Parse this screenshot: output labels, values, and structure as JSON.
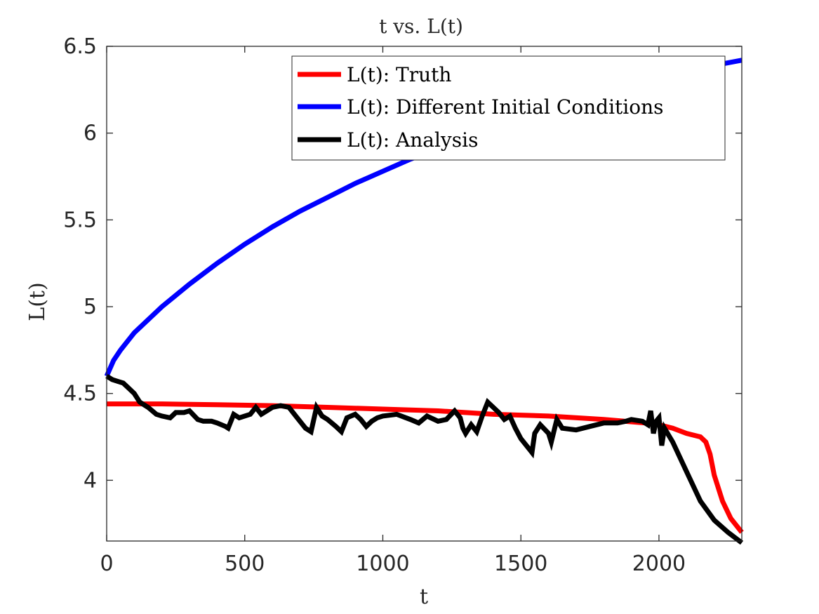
{
  "chart_data": {
    "type": "line",
    "title": "t vs. L(t)",
    "xlabel": "t",
    "ylabel": "L(t)",
    "xlim": [
      0,
      2300
    ],
    "ylim": [
      3.65,
      6.5
    ],
    "xticks": [
      0,
      500,
      1000,
      1500,
      2000
    ],
    "xtick_labels": [
      "0",
      "500",
      "1000",
      "1500",
      "2000"
    ],
    "yticks": [
      4,
      4.5,
      5,
      5.5,
      6,
      6.5
    ],
    "ytick_labels": [
      "4",
      "4.5",
      "5",
      "5.5",
      "6",
      "6.5"
    ],
    "grid": false,
    "legend_position": "top-right",
    "series": [
      {
        "name": "L(t): Truth",
        "color": "#ff0000",
        "x": [
          0,
          200,
          400,
          600,
          800,
          1000,
          1200,
          1400,
          1600,
          1800,
          1950,
          2000,
          2050,
          2100,
          2150,
          2170,
          2185,
          2200,
          2230,
          2260,
          2300
        ],
        "y": [
          4.44,
          4.44,
          4.435,
          4.43,
          4.42,
          4.41,
          4.4,
          4.38,
          4.37,
          4.35,
          4.33,
          4.32,
          4.3,
          4.27,
          4.25,
          4.22,
          4.15,
          4.03,
          3.88,
          3.78,
          3.7
        ]
      },
      {
        "name": "L(t): Different Initial Conditions",
        "color": "#0000ff",
        "x": [
          0,
          25,
          50,
          100,
          200,
          300,
          400,
          500,
          600,
          700,
          800,
          900,
          1000,
          1100,
          1200,
          1300,
          1400,
          1500,
          1600,
          1700,
          1800,
          1900,
          2000,
          2100,
          2200,
          2300
        ],
        "y": [
          4.6,
          4.69,
          4.75,
          4.85,
          5.0,
          5.13,
          5.25,
          5.36,
          5.46,
          5.55,
          5.63,
          5.71,
          5.78,
          5.85,
          5.91,
          5.97,
          6.03,
          6.08,
          6.13,
          6.18,
          6.23,
          6.27,
          6.31,
          6.35,
          6.39,
          6.42
        ]
      },
      {
        "name": "L(t): Analysis",
        "color": "#000000",
        "x": [
          0,
          20,
          40,
          60,
          80,
          100,
          120,
          150,
          180,
          200,
          230,
          250,
          280,
          300,
          330,
          350,
          380,
          400,
          430,
          440,
          460,
          480,
          500,
          520,
          540,
          560,
          580,
          600,
          630,
          660,
          690,
          700,
          720,
          740,
          760,
          780,
          800,
          830,
          850,
          870,
          900,
          920,
          940,
          960,
          980,
          1000,
          1050,
          1100,
          1130,
          1160,
          1200,
          1230,
          1260,
          1280,
          1290,
          1300,
          1320,
          1340,
          1360,
          1380,
          1400,
          1420,
          1440,
          1460,
          1480,
          1500,
          1520,
          1540,
          1550,
          1570,
          1600,
          1610,
          1630,
          1650,
          1700,
          1750,
          1800,
          1850,
          1880,
          1900,
          1940,
          1960,
          1970,
          1980,
          1990,
          2000,
          2010,
          2020,
          2050,
          2100,
          2150,
          2200,
          2250,
          2300
        ],
        "y": [
          4.6,
          4.58,
          4.57,
          4.56,
          4.53,
          4.5,
          4.45,
          4.42,
          4.38,
          4.37,
          4.36,
          4.39,
          4.39,
          4.4,
          4.35,
          4.34,
          4.34,
          4.33,
          4.31,
          4.3,
          4.38,
          4.36,
          4.37,
          4.38,
          4.42,
          4.38,
          4.4,
          4.42,
          4.43,
          4.42,
          4.36,
          4.34,
          4.3,
          4.28,
          4.42,
          4.37,
          4.35,
          4.31,
          4.28,
          4.36,
          4.38,
          4.35,
          4.31,
          4.34,
          4.36,
          4.37,
          4.38,
          4.35,
          4.33,
          4.37,
          4.34,
          4.35,
          4.4,
          4.36,
          4.3,
          4.27,
          4.32,
          4.28,
          4.37,
          4.45,
          4.42,
          4.39,
          4.35,
          4.37,
          4.3,
          4.24,
          4.2,
          4.16,
          4.27,
          4.32,
          4.27,
          4.22,
          4.35,
          4.3,
          4.29,
          4.31,
          4.33,
          4.33,
          4.34,
          4.35,
          4.34,
          4.32,
          4.4,
          4.27,
          4.34,
          4.36,
          4.2,
          4.3,
          4.22,
          4.05,
          3.88,
          3.77,
          3.7,
          3.64
        ]
      }
    ]
  }
}
